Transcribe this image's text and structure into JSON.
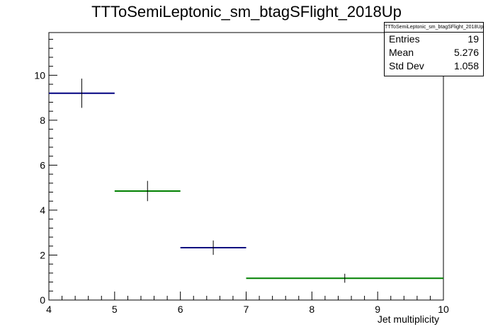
{
  "chart_data": {
    "type": "histogram",
    "title": "TTToSemiLeptonic_sm_btagSFlight_2018Up",
    "xlabel": "Jet multiplicity",
    "ylabel": "",
    "xlim": [
      4,
      10
    ],
    "ylim": [
      0,
      11.9
    ],
    "x_ticks": [
      "4",
      "5",
      "6",
      "7",
      "8",
      "9",
      "10"
    ],
    "y_ticks": [
      "0",
      "2",
      "4",
      "6",
      "8",
      "10"
    ],
    "bins": [
      {
        "low": 4,
        "high": 5,
        "center": 4.5,
        "value": 9.2,
        "error": 0.65,
        "color": "#000080"
      },
      {
        "low": 5,
        "high": 6,
        "center": 5.5,
        "value": 4.85,
        "error": 0.45,
        "color": "#008000"
      },
      {
        "low": 6,
        "high": 7,
        "center": 6.5,
        "value": 2.33,
        "error": 0.32,
        "color": "#000080"
      },
      {
        "low": 7,
        "high": 10,
        "center": 8.5,
        "value": 0.97,
        "error": 0.2,
        "color": "#008000"
      }
    ],
    "stats": {
      "title": "TTToSemiLeptonic_sm_btagSFlight_2018Up",
      "rows": [
        {
          "label": "Entries",
          "value": "19"
        },
        {
          "label": "Mean",
          "value": "5.276"
        },
        {
          "label": "Std Dev",
          "value": "1.058"
        }
      ]
    }
  }
}
